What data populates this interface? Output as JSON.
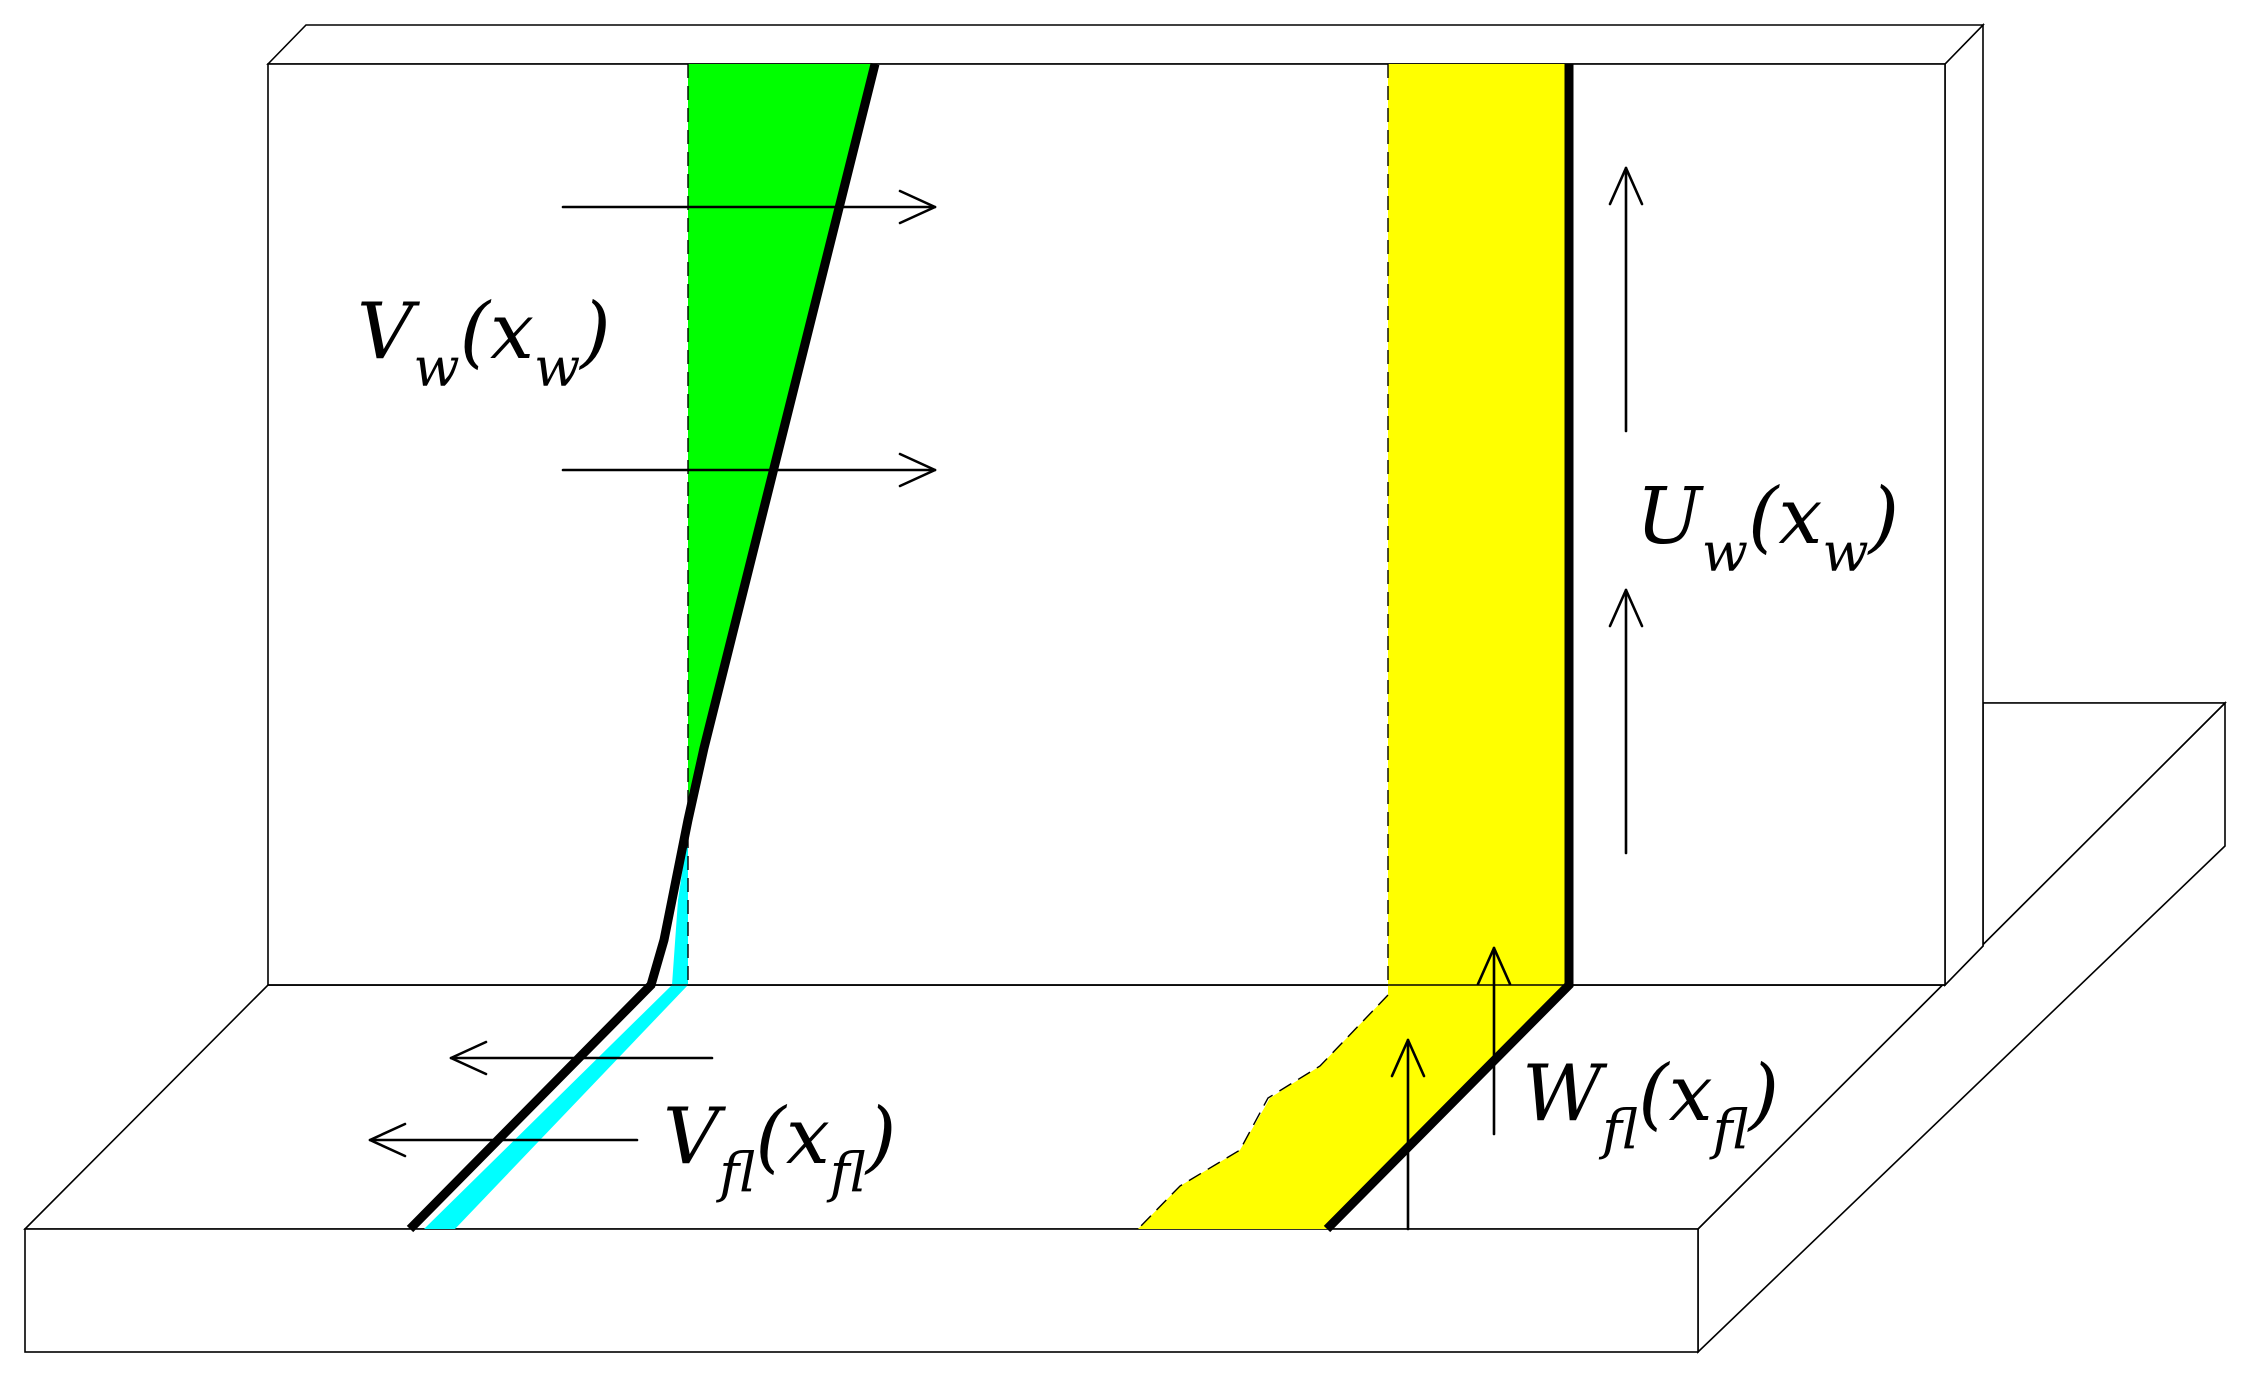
{
  "colors": {
    "web_shear_fill": "#00ff00",
    "flange_shear_fill": "#00ffff",
    "warping_fill": "#ffff00",
    "outline": "#000000",
    "background": "#ffffff"
  },
  "labels": {
    "web_transverse": {
      "symbol": "V",
      "symbol_sub": "w",
      "arg": "x",
      "arg_sub": "w"
    },
    "web_axial": {
      "symbol": "U",
      "symbol_sub": "w",
      "arg": "x",
      "arg_sub": "w"
    },
    "flange_transverse": {
      "symbol": "V",
      "symbol_sub": "fl",
      "arg": "x",
      "arg_sub": "fl"
    },
    "flange_warping": {
      "symbol": "W",
      "symbol_sub": "fl",
      "arg": "x",
      "arg_sub": "fl"
    }
  }
}
